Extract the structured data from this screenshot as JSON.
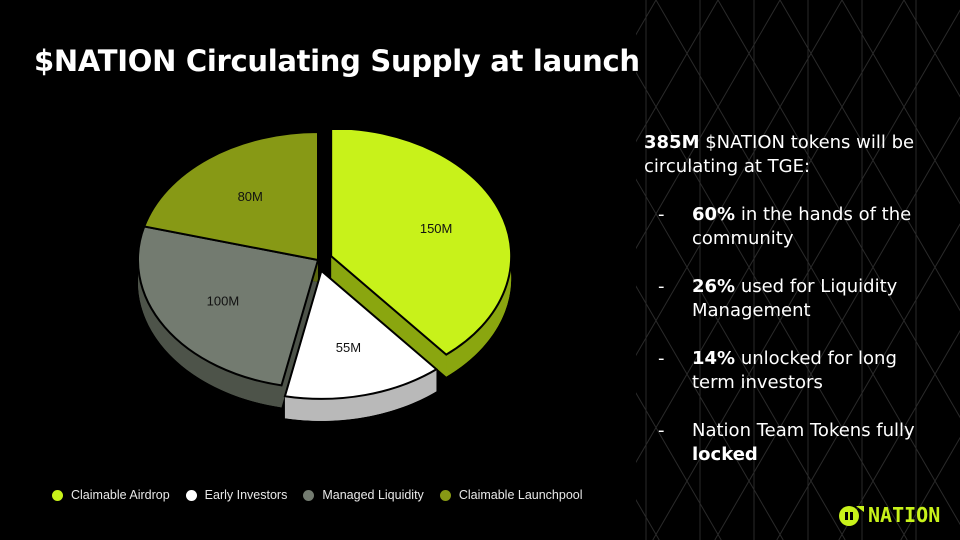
{
  "slide": {
    "title": "$NATION Circulating Supply at launch"
  },
  "info": {
    "intro_bold": "385M",
    "intro_text": " $NATION tokens will be circulating at TGE:",
    "bullets": [
      {
        "bold": "60%",
        "text": " in the hands of the community",
        "suffix_bold": ""
      },
      {
        "bold": "26%",
        "text": " used for Liquidity Management",
        "suffix_bold": ""
      },
      {
        "bold": "14%",
        "text": " unlocked for long term investors",
        "suffix_bold": ""
      },
      {
        "bold": "",
        "text": "Nation Team Tokens fully ",
        "suffix_bold": "locked"
      }
    ],
    "dash": "-"
  },
  "logo": {
    "text": "NATION",
    "color": "#c8f21a"
  },
  "chart_data": {
    "type": "pie",
    "style": "3d",
    "title": "",
    "unit": "M",
    "slices": [
      {
        "name": "Claimable Airdrop",
        "value": 150,
        "label": "150M",
        "color": "#c8f21a",
        "side_color": "#8aa60f",
        "exploded": true
      },
      {
        "name": "Early Investors",
        "value": 55,
        "label": "55M",
        "color": "#ffffff",
        "side_color": "#b9b9b9",
        "exploded": true
      },
      {
        "name": "Managed Liquidity",
        "value": 100,
        "label": "100M",
        "color": "#737b70",
        "side_color": "#4d5349",
        "exploded": false
      },
      {
        "name": "Claimable Launchpool",
        "value": 80,
        "label": "80M",
        "color": "#879915",
        "side_color": "#5a660e",
        "exploded": false
      }
    ],
    "legend_position": "bottom"
  }
}
